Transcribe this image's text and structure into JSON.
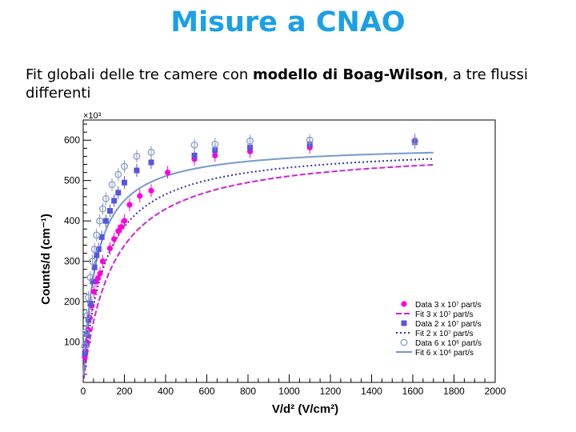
{
  "slide": {
    "title": "Misure a CNAO",
    "subtitle_pre": "Fit globali delle tre camere con ",
    "subtitle_bold": "modello di Boag-Wilson",
    "subtitle_post": ", a tre flussi differenti"
  },
  "chart_data": {
    "type": "scatter",
    "xlabel": "V/d² (V/cm²)",
    "ylabel": "Counts/d (cm⁻¹)",
    "y_multiplier": "×10³",
    "xlim": [
      0,
      2000
    ],
    "ylim": [
      0,
      650
    ],
    "xticks": [
      0,
      200,
      400,
      600,
      800,
      1000,
      1200,
      1400,
      1600,
      1800,
      2000
    ],
    "yticks": [
      100,
      200,
      300,
      400,
      500,
      600
    ],
    "legend_position": "bottom-right",
    "series": [
      {
        "name": "Data 3 x 10⁷ part/s",
        "kind": "data",
        "marker": "filled-circle",
        "color": "#ff00dd",
        "points": [
          [
            8,
            62
          ],
          [
            12,
            78
          ],
          [
            18,
            100
          ],
          [
            25,
            130
          ],
          [
            32,
            160
          ],
          [
            42,
            190
          ],
          [
            52,
            225
          ],
          [
            62,
            250
          ],
          [
            72,
            258
          ],
          [
            82,
            270
          ],
          [
            95,
            300
          ],
          [
            130,
            332
          ],
          [
            150,
            355
          ],
          [
            170,
            375
          ],
          [
            185,
            385
          ],
          [
            200,
            400
          ],
          [
            225,
            440
          ],
          [
            275,
            462
          ],
          [
            330,
            475
          ],
          [
            410,
            520
          ],
          [
            540,
            553
          ],
          [
            640,
            562
          ],
          [
            810,
            572
          ],
          [
            1100,
            582
          ],
          [
            1610,
            600
          ]
        ]
      },
      {
        "name": "Fit 3 x 10⁷ part/s",
        "kind": "fit",
        "line": "dashed",
        "color": "#cc22dd",
        "sat": 585,
        "k": 145
      },
      {
        "name": "Data 2 x 10⁷ part/s",
        "kind": "data",
        "marker": "filled-square",
        "color": "#5555dd",
        "points": [
          [
            8,
            72
          ],
          [
            12,
            95
          ],
          [
            18,
            120
          ],
          [
            25,
            155
          ],
          [
            35,
            195
          ],
          [
            45,
            250
          ],
          [
            55,
            285
          ],
          [
            65,
            315
          ],
          [
            75,
            330
          ],
          [
            90,
            360
          ],
          [
            110,
            400
          ],
          [
            130,
            425
          ],
          [
            150,
            450
          ],
          [
            170,
            470
          ],
          [
            200,
            495
          ],
          [
            260,
            525
          ],
          [
            330,
            545
          ],
          [
            540,
            562
          ],
          [
            640,
            575
          ],
          [
            810,
            582
          ],
          [
            1100,
            590
          ],
          [
            1610,
            595
          ]
        ]
      },
      {
        "name": "Fit 2 x 10⁷ part/s",
        "kind": "fit",
        "line": "dotted",
        "color": "#333399",
        "sat": 588,
        "k": 105
      },
      {
        "name": "Data 6 x 10⁶ part/s",
        "kind": "data",
        "marker": "open-circle",
        "color": "#8899cc",
        "points": [
          [
            8,
            90
          ],
          [
            12,
            125
          ],
          [
            18,
            165
          ],
          [
            25,
            210
          ],
          [
            35,
            260
          ],
          [
            45,
            300
          ],
          [
            55,
            330
          ],
          [
            65,
            365
          ],
          [
            80,
            400
          ],
          [
            95,
            430
          ],
          [
            110,
            455
          ],
          [
            140,
            490
          ],
          [
            170,
            515
          ],
          [
            200,
            535
          ],
          [
            260,
            560
          ],
          [
            330,
            570
          ],
          [
            540,
            588
          ],
          [
            640,
            590
          ],
          [
            810,
            598
          ],
          [
            1100,
            600
          ],
          [
            1610,
            598
          ]
        ]
      },
      {
        "name": "Fit 6 x 10⁶ part/s",
        "kind": "fit",
        "line": "solid",
        "color": "#7799cc",
        "sat": 590,
        "k": 62
      }
    ]
  }
}
